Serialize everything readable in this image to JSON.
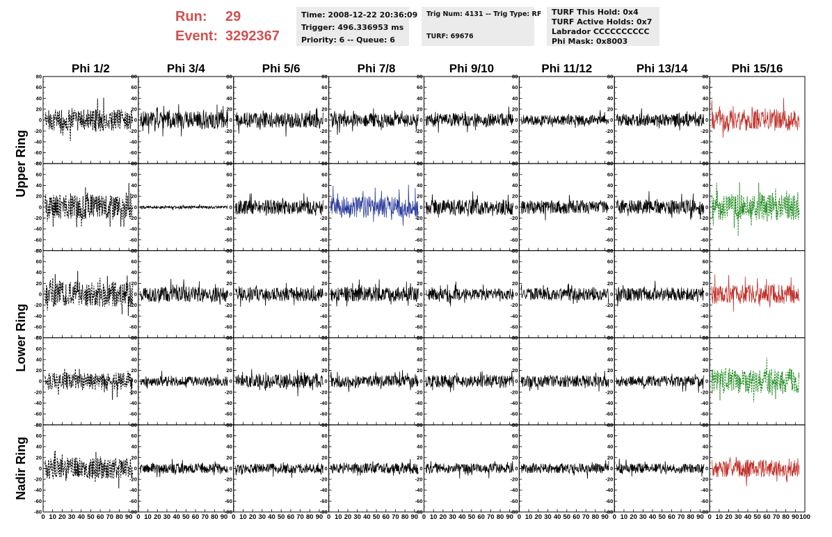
{
  "header": {
    "run_label": "Run:",
    "run_value": "29",
    "event_label": "Event:",
    "event_value": "3292367",
    "time": "Time: 2008-12-22 20:36:09",
    "trigger": "Trigger: 496.336953 ms",
    "priority": "Priority: 6 -- Queue: 6",
    "trig_num": "Trig Num: 4131 -- Trig Type: RF",
    "turf": "TURF: 69676",
    "turf_hold": "TURF This Hold: 0x4",
    "turf_active": "TURF Active Holds: 0x7",
    "labrador": "Labrador CCCCCCCCCC",
    "phi_mask": "Phi Mask: 0x8003"
  },
  "chart_data": {
    "type": "line",
    "columns": [
      "Phi 1/2",
      "Phi 3/4",
      "Phi 5/6",
      "Phi 7/8",
      "Phi 9/10",
      "Phi 11/12",
      "Phi 13/14",
      "Phi 15/16"
    ],
    "rows": [
      "Upper Ring",
      "Upper Ring",
      "Lower Ring",
      "Lower Ring",
      "Nadir Ring"
    ],
    "row_labels": [
      "Upper Ring",
      "Lower Ring",
      "Nadir Ring"
    ],
    "xlim": [
      0,
      100
    ],
    "ylim": [
      -80,
      80
    ],
    "x_ticks": [
      0,
      10,
      20,
      30,
      40,
      50,
      60,
      70,
      80,
      90
    ],
    "last_x_tick": 100,
    "y_ticks": [
      80,
      60,
      40,
      20,
      0,
      -20,
      -40,
      -60,
      -80
    ],
    "colors": {
      "black": "#000000",
      "red": "#c0302a",
      "blue": "#2a3a9a",
      "green": "#1e8a1e"
    },
    "traces": [
      [
        {
          "amp": 22,
          "color": "black",
          "dashed": true
        },
        {
          "amp": 18,
          "color": "black",
          "dashed": false
        },
        {
          "amp": 16,
          "color": "black",
          "dashed": false
        },
        {
          "amp": 14,
          "color": "black",
          "dashed": false
        },
        {
          "amp": 14,
          "color": "black",
          "dashed": false
        },
        {
          "amp": 10,
          "color": "black",
          "dashed": false
        },
        {
          "amp": 13,
          "color": "black",
          "dashed": false
        },
        {
          "amp": 22,
          "color": "red",
          "dashed": false
        }
      ],
      [
        {
          "amp": 26,
          "color": "black",
          "dashed": true
        },
        {
          "amp": 3,
          "color": "black",
          "dashed": false
        },
        {
          "amp": 15,
          "color": "black",
          "dashed": false
        },
        {
          "amp": 22,
          "color": "blue",
          "dashed": false
        },
        {
          "amp": 16,
          "color": "black",
          "dashed": false
        },
        {
          "amp": 14,
          "color": "black",
          "dashed": false
        },
        {
          "amp": 15,
          "color": "black",
          "dashed": false
        },
        {
          "amp": 27,
          "color": "green",
          "dashed": true
        }
      ],
      [
        {
          "amp": 26,
          "color": "black",
          "dashed": true
        },
        {
          "amp": 16,
          "color": "black",
          "dashed": false
        },
        {
          "amp": 14,
          "color": "black",
          "dashed": false
        },
        {
          "amp": 15,
          "color": "black",
          "dashed": false
        },
        {
          "amp": 12,
          "color": "black",
          "dashed": false
        },
        {
          "amp": 13,
          "color": "black",
          "dashed": false
        },
        {
          "amp": 14,
          "color": "black",
          "dashed": false
        },
        {
          "amp": 20,
          "color": "red",
          "dashed": false
        }
      ],
      [
        {
          "amp": 18,
          "color": "black",
          "dashed": true
        },
        {
          "amp": 10,
          "color": "black",
          "dashed": false
        },
        {
          "amp": 14,
          "color": "black",
          "dashed": false
        },
        {
          "amp": 12,
          "color": "black",
          "dashed": false
        },
        {
          "amp": 13,
          "color": "black",
          "dashed": false
        },
        {
          "amp": 12,
          "color": "black",
          "dashed": false
        },
        {
          "amp": 11,
          "color": "black",
          "dashed": false
        },
        {
          "amp": 26,
          "color": "green",
          "dashed": true
        }
      ],
      [
        {
          "amp": 22,
          "color": "black",
          "dashed": true
        },
        {
          "amp": 10,
          "color": "black",
          "dashed": false
        },
        {
          "amp": 10,
          "color": "black",
          "dashed": false
        },
        {
          "amp": 11,
          "color": "black",
          "dashed": false
        },
        {
          "amp": 10,
          "color": "black",
          "dashed": false
        },
        {
          "amp": 10,
          "color": "black",
          "dashed": false
        },
        {
          "amp": 10,
          "color": "black",
          "dashed": false
        },
        {
          "amp": 18,
          "color": "red",
          "dashed": false
        }
      ]
    ]
  }
}
